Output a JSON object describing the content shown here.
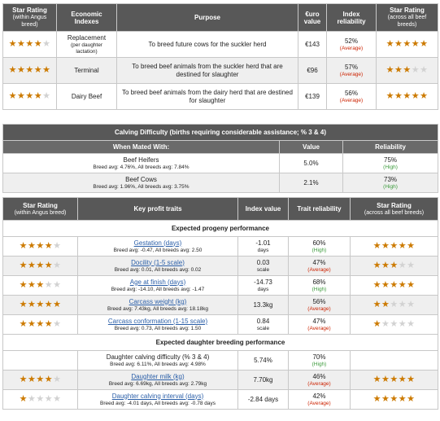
{
  "economic_table": {
    "headers": {
      "star_rating": "Star Rating",
      "star_rating_sub": "(within Angus breed)",
      "economic_indexes": "Economic Indexes",
      "purpose": "Purpose",
      "euro_value": "€uro value",
      "index_reliability": "Index reliability",
      "star_rating_all": "Star Rating",
      "star_rating_all_sub": "(across all beef breeds)"
    },
    "rows": [
      {
        "stars_within": 4,
        "index": "Replacement",
        "index_sub": "(per daughter lactation)",
        "purpose": "To breed future cows for the suckler herd",
        "value": "€143",
        "reliability": "52%",
        "reliability_label": "(Average)",
        "stars_across": 5
      },
      {
        "stars_within": 5,
        "index": "Terminal",
        "index_sub": "",
        "purpose": "To breed beef animals from the suckler herd that are destined for slaughter",
        "value": "€96",
        "reliability": "57%",
        "reliability_label": "(Average)",
        "stars_across": 3
      },
      {
        "stars_within": 4,
        "index": "Dairy Beef",
        "index_sub": "",
        "purpose": "To breed beef animals from the dairy herd that are destined for slaughter",
        "value": "€139",
        "reliability": "56%",
        "reliability_label": "(Average)",
        "stars_across": 5
      }
    ]
  },
  "calving_table": {
    "caption": "Calving Difficulty (births requiring considerable assistance; % 3 & 4)",
    "headers": {
      "mated_with": "When Mated With:",
      "value": "Value",
      "reliability": "Reliability"
    },
    "rows": [
      {
        "label": "Beef Heifers",
        "breed_avg": "Breed avg: 4.76%, All breeds avg: 7.84%",
        "value": "5.0%",
        "reliability": "75%",
        "reliability_label": "(High)"
      },
      {
        "label": "Beef Cows",
        "breed_avg": "Breed avg: 1.96%, All breeds avg: 3.75%",
        "value": "2.1%",
        "reliability": "73%",
        "reliability_label": "(High)"
      }
    ]
  },
  "traits_table": {
    "headers": {
      "star_rating": "Star Rating",
      "star_rating_sub": "(within Angus breed)",
      "key_traits": "Key profit traits",
      "index_value": "Index value",
      "trait_reliability": "Trait reliability",
      "star_rating_all": "Star Rating",
      "star_rating_all_sub": "(across all beef breeds)"
    },
    "sections": [
      {
        "title": "Expected progeny performance",
        "rows": [
          {
            "stars_within": 4,
            "trait": "Gestation (days)",
            "link": true,
            "breed_avg": "Breed avg: -0.47, All breeds avg: 2.50",
            "value": "-1.01",
            "unit": "days",
            "reliability": "60%",
            "reliability_label": "(High)",
            "stars_across": 5
          },
          {
            "stars_within": 4,
            "trait": "Docility (1-5 scale)",
            "link": true,
            "breed_avg": "Breed avg: 0.01, All breeds avg: 0.02",
            "value": "0.03",
            "unit": "scale",
            "reliability": "47%",
            "reliability_label": "(Average)",
            "stars_across": 3
          },
          {
            "stars_within": 3,
            "trait": "Age at finish (days)",
            "link": true,
            "breed_avg": "Breed avg: -14.10, All breeds avg: -1.47",
            "value": "-14.73",
            "unit": "days",
            "reliability": "68%",
            "reliability_label": "(High)",
            "stars_across": 5
          },
          {
            "stars_within": 5,
            "trait": "Carcass weight (kg)",
            "link": true,
            "breed_avg": "Breed avg: 7.43kg, All breeds avg: 18.18kg",
            "value": "13.3kg",
            "unit": "",
            "reliability": "56%",
            "reliability_label": "(Average)",
            "stars_across": 2
          },
          {
            "stars_within": 4,
            "trait": "Carcass conformation (1-15 scale)",
            "link": true,
            "breed_avg": "Breed avg: 0.73, All breeds avg: 1.50",
            "value": "0.84",
            "unit": "scale",
            "reliability": "47%",
            "reliability_label": "(Average)",
            "stars_across": 1
          }
        ]
      },
      {
        "title": "Expected daughter breeding performance",
        "rows": [
          {
            "stars_within": 0,
            "trait": "Daughter calving difficulty (% 3 & 4)",
            "link": false,
            "breed_avg": "Breed avg: 6.11%, All breeds avg: 4.98%",
            "value": "5.74%",
            "unit": "",
            "reliability": "70%",
            "reliability_label": "(High)",
            "stars_across": 0
          },
          {
            "stars_within": 4,
            "trait": "Daughter milk (kg)",
            "link": true,
            "breed_avg": "Breed avg: 6.69kg, All breeds avg: 2.79kg",
            "value": "7.70kg",
            "unit": "",
            "reliability": "46%",
            "reliability_label": "(Average)",
            "stars_across": 5
          },
          {
            "stars_within": 1,
            "trait": "Daughter calving interval (days)",
            "link": true,
            "breed_avg": "Breed avg: -4.01 days, All breeds avg: -0.78 days",
            "value": "-2.84 days",
            "unit": "",
            "reliability": "42%",
            "reliability_label": "(Average)",
            "stars_across": 5
          }
        ]
      }
    ]
  },
  "colors": {
    "star_on": "#cc7a00",
    "star_off": "#d2d2d2",
    "header_bg": "#585858",
    "link": "#2b5fa8",
    "average": "#cc2200",
    "high": "#3a9a3a"
  },
  "icons": {
    "star": "star-icon"
  }
}
